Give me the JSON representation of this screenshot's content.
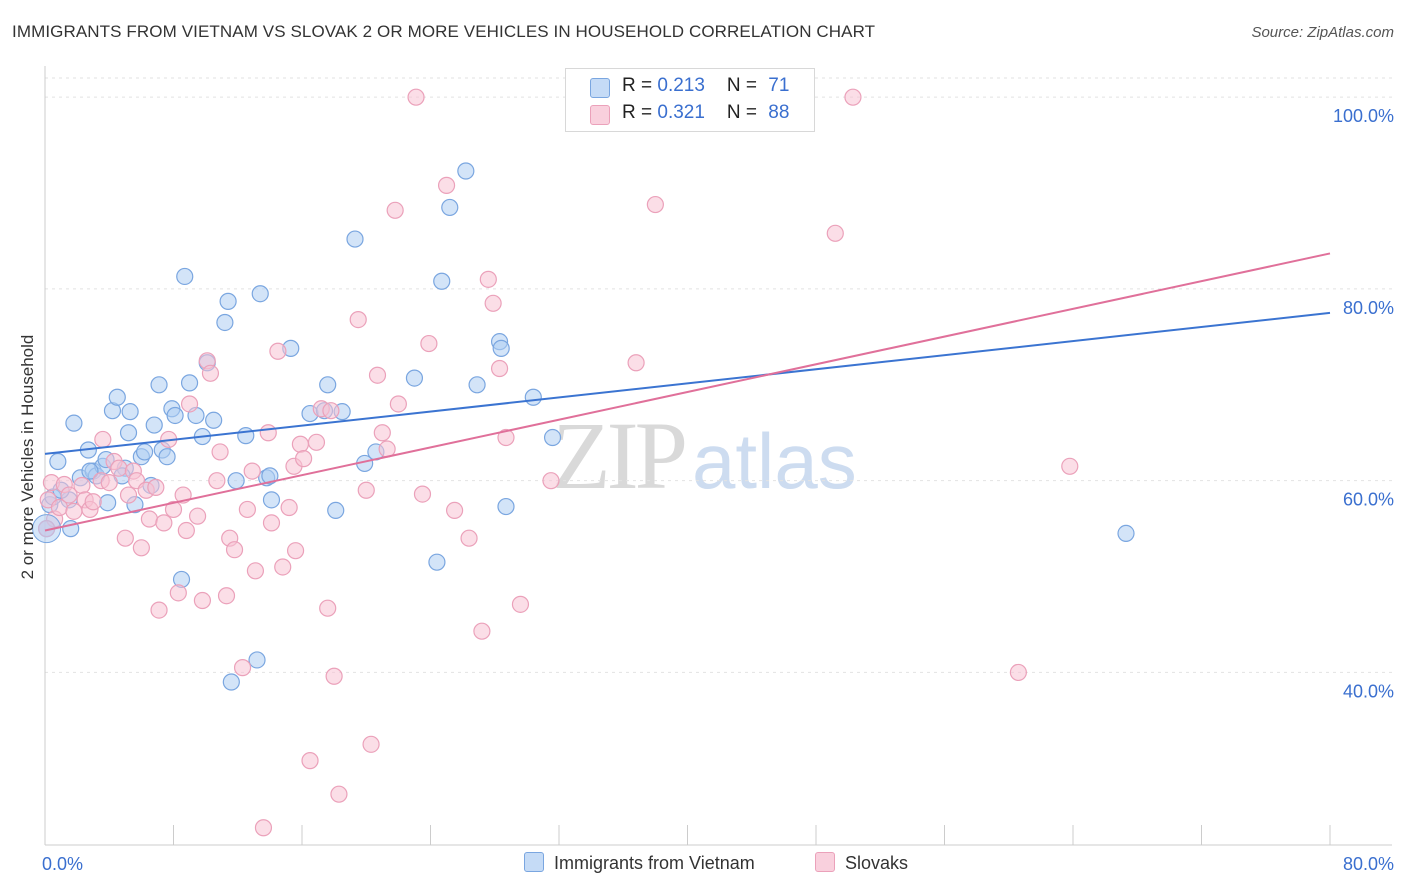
{
  "title": "IMMIGRANTS FROM VIETNAM VS SLOVAK 2 OR MORE VEHICLES IN HOUSEHOLD CORRELATION CHART",
  "source": "Source: ZipAtlas.com",
  "watermark": {
    "zip": "ZIP",
    "atlas": "atlas"
  },
  "stats": [
    {
      "r_label": "R = ",
      "r_value": "0.213",
      "n_label": "N = ",
      "n_value": "71",
      "color": "#a9c8f0"
    },
    {
      "r_label": "R = ",
      "r_value": "0.321",
      "n_label": "N = ",
      "n_value": "88",
      "color": "#f5bccd"
    }
  ],
  "chart_data": {
    "type": "scatter",
    "title": "IMMIGRANTS FROM VIETNAM VS SLOVAK 2 OR MORE VEHICLES IN HOUSEHOLD CORRELATION CHART",
    "xlabel": "",
    "ylabel": "2 or more Vehicles in Household",
    "xlim": [
      0,
      80
    ],
    "ylim": [
      22,
      102
    ],
    "x_tick_labels": [
      {
        "value": 0,
        "label": "0.0%"
      },
      {
        "value": 80,
        "label": "80.0%"
      }
    ],
    "y_tick_labels": [
      {
        "value": 40,
        "label": "40.0%"
      },
      {
        "value": 60,
        "label": "60.0%"
      },
      {
        "value": 80,
        "label": "80.0%"
      },
      {
        "value": 100,
        "label": "100.0%"
      }
    ],
    "grid": true,
    "legend_position": "bottom-center",
    "series": [
      {
        "name": "Immigrants from Vietnam",
        "color": "#3b74d1",
        "fill": "#aecdf3",
        "stroke": "#7aa6e0",
        "trend": {
          "x": [
            0,
            80
          ],
          "y": [
            62.8,
            77.5
          ]
        },
        "points": [
          [
            0.1,
            55.0
          ],
          [
            0.3,
            57.5
          ],
          [
            0.5,
            58.3
          ],
          [
            0.8,
            62.0
          ],
          [
            1.5,
            58.0
          ],
          [
            1.6,
            55.0
          ],
          [
            1.8,
            66.0
          ],
          [
            2.2,
            60.3
          ],
          [
            2.7,
            63.2
          ],
          [
            3.0,
            61.0
          ],
          [
            3.2,
            60.5
          ],
          [
            3.6,
            61.5
          ],
          [
            3.8,
            62.2
          ],
          [
            3.9,
            57.7
          ],
          [
            4.2,
            67.3
          ],
          [
            4.5,
            68.7
          ],
          [
            5.0,
            61.3
          ],
          [
            5.2,
            65.0
          ],
          [
            5.3,
            67.2
          ],
          [
            5.6,
            57.5
          ],
          [
            6.0,
            62.5
          ],
          [
            6.2,
            63.0
          ],
          [
            6.6,
            59.5
          ],
          [
            6.8,
            65.8
          ],
          [
            7.1,
            70.0
          ],
          [
            7.3,
            63.2
          ],
          [
            7.6,
            62.5
          ],
          [
            7.9,
            67.5
          ],
          [
            8.1,
            66.8
          ],
          [
            8.7,
            81.3
          ],
          [
            8.5,
            49.7
          ],
          [
            9.0,
            70.2
          ],
          [
            9.4,
            66.8
          ],
          [
            9.8,
            64.6
          ],
          [
            10.1,
            72.3
          ],
          [
            10.5,
            66.3
          ],
          [
            11.2,
            76.5
          ],
          [
            11.4,
            78.7
          ],
          [
            11.6,
            39.0
          ],
          [
            11.9,
            60.0
          ],
          [
            12.5,
            64.7
          ],
          [
            13.2,
            41.3
          ],
          [
            13.4,
            79.5
          ],
          [
            13.8,
            60.3
          ],
          [
            14.0,
            60.5
          ],
          [
            14.1,
            58.0
          ],
          [
            15.3,
            73.8
          ],
          [
            16.5,
            67.0
          ],
          [
            17.4,
            67.3
          ],
          [
            17.6,
            70.0
          ],
          [
            18.1,
            56.9
          ],
          [
            18.5,
            67.2
          ],
          [
            19.3,
            85.2
          ],
          [
            19.9,
            61.8
          ],
          [
            20.6,
            63.0
          ],
          [
            23.0,
            70.7
          ],
          [
            24.4,
            51.5
          ],
          [
            24.7,
            80.8
          ],
          [
            25.2,
            88.5
          ],
          [
            26.2,
            92.3
          ],
          [
            26.9,
            70.0
          ],
          [
            28.3,
            74.5
          ],
          [
            28.4,
            73.8
          ],
          [
            28.7,
            57.3
          ],
          [
            30.4,
            68.7
          ],
          [
            31.6,
            64.5
          ],
          [
            67.3,
            54.5
          ],
          [
            1.0,
            59.0
          ],
          [
            2.8,
            61.0
          ],
          [
            4.8,
            60.5
          ]
        ]
      },
      {
        "name": "Slovaks",
        "color": "#e0709a",
        "fill": "#f7c3d3",
        "stroke": "#eba1ba",
        "trend": {
          "x": [
            0,
            80
          ],
          "y": [
            54.8,
            83.7
          ]
        },
        "points": [
          [
            0.2,
            58.0
          ],
          [
            0.4,
            59.8
          ],
          [
            0.6,
            56.0
          ],
          [
            0.9,
            57.2
          ],
          [
            1.2,
            59.6
          ],
          [
            1.5,
            58.5
          ],
          [
            1.8,
            56.8
          ],
          [
            2.3,
            59.5
          ],
          [
            2.5,
            58.0
          ],
          [
            2.8,
            57.0
          ],
          [
            3.0,
            57.8
          ],
          [
            3.5,
            60.0
          ],
          [
            3.6,
            64.3
          ],
          [
            4.0,
            59.8
          ],
          [
            4.3,
            62.0
          ],
          [
            4.6,
            61.3
          ],
          [
            5.0,
            54.0
          ],
          [
            5.2,
            58.5
          ],
          [
            5.5,
            61.0
          ],
          [
            5.7,
            60.0
          ],
          [
            6.0,
            53.0
          ],
          [
            6.3,
            59.0
          ],
          [
            6.5,
            56.0
          ],
          [
            6.9,
            59.3
          ],
          [
            7.1,
            46.5
          ],
          [
            7.4,
            55.6
          ],
          [
            7.7,
            64.3
          ],
          [
            8.0,
            57.0
          ],
          [
            8.3,
            48.3
          ],
          [
            8.6,
            58.5
          ],
          [
            8.8,
            54.8
          ],
          [
            9.0,
            68.0
          ],
          [
            9.5,
            56.3
          ],
          [
            9.8,
            47.5
          ],
          [
            10.1,
            72.5
          ],
          [
            10.3,
            71.2
          ],
          [
            10.7,
            60.0
          ],
          [
            10.9,
            63.0
          ],
          [
            11.3,
            48.0
          ],
          [
            11.5,
            54.0
          ],
          [
            11.8,
            52.8
          ],
          [
            12.3,
            40.5
          ],
          [
            12.6,
            57.0
          ],
          [
            12.9,
            61.0
          ],
          [
            13.1,
            50.6
          ],
          [
            13.6,
            23.8
          ],
          [
            13.9,
            65.0
          ],
          [
            14.1,
            55.6
          ],
          [
            14.5,
            73.5
          ],
          [
            14.8,
            51.0
          ],
          [
            15.2,
            57.2
          ],
          [
            15.5,
            61.5
          ],
          [
            15.6,
            52.7
          ],
          [
            15.9,
            63.8
          ],
          [
            16.1,
            62.3
          ],
          [
            16.5,
            30.8
          ],
          [
            16.9,
            64.0
          ],
          [
            17.2,
            67.5
          ],
          [
            17.6,
            46.7
          ],
          [
            17.8,
            67.3
          ],
          [
            18.0,
            39.6
          ],
          [
            18.3,
            27.3
          ],
          [
            19.5,
            76.8
          ],
          [
            20.0,
            59.0
          ],
          [
            20.3,
            32.5
          ],
          [
            20.7,
            71.0
          ],
          [
            21.0,
            65.0
          ],
          [
            21.3,
            63.3
          ],
          [
            21.8,
            88.2
          ],
          [
            22.0,
            68.0
          ],
          [
            23.1,
            100.0
          ],
          [
            23.5,
            58.6
          ],
          [
            23.9,
            74.3
          ],
          [
            25.0,
            90.8
          ],
          [
            25.5,
            56.9
          ],
          [
            26.4,
            54.0
          ],
          [
            27.2,
            44.3
          ],
          [
            27.6,
            81.0
          ],
          [
            27.9,
            78.5
          ],
          [
            28.3,
            71.7
          ],
          [
            28.7,
            64.5
          ],
          [
            29.6,
            47.1
          ],
          [
            31.5,
            60.0
          ],
          [
            36.8,
            72.3
          ],
          [
            38.0,
            88.8
          ],
          [
            49.2,
            85.8
          ],
          [
            50.3,
            100.0
          ],
          [
            60.6,
            40.0
          ],
          [
            63.8,
            61.5
          ],
          [
            0.1,
            55.0
          ]
        ]
      }
    ]
  }
}
